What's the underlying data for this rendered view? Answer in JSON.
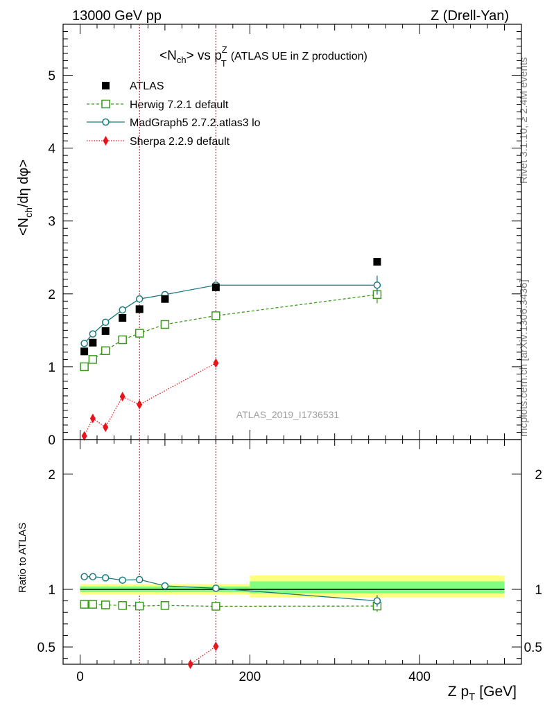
{
  "header": {
    "left": "13000 GeV pp",
    "right": "Z (Drell-Yan)"
  },
  "side_labels": {
    "rivet": "Rivet 3.1.10, ≥ 2.4M events",
    "mcplots": "mcplots.cern.ch [arXiv:1306.3436]"
  },
  "colors": {
    "atlas": "#000000",
    "herwig": "#3a9a1a",
    "madgraph": "#1a7a80",
    "sherpa": "#e8141c",
    "band_inner": "#80ff80",
    "band_outer": "#ffff80"
  },
  "chart_data": [
    {
      "type": "scatter",
      "title_parts": {
        "a": "<N",
        "b": "ch",
        "c": "> vs p",
        "d": "Z",
        "e": "T",
        "f": "(ATLAS UE in Z production)"
      },
      "ylabel_parts": {
        "a": "<N",
        "b": "ch",
        "c": "/dη dφ>"
      },
      "watermark": "ATLAS_2019_I1736531",
      "xlim": [
        -20,
        520
      ],
      "ylim": [
        0,
        5.7
      ],
      "yticks": [
        "0",
        "1",
        "2",
        "3",
        "4",
        "5"
      ],
      "legend_position": "top-left",
      "series": [
        {
          "name": "ATLAS",
          "marker": "filled-square",
          "x": [
            5,
            15,
            30,
            50,
            70,
            100,
            160,
            350
          ],
          "y": [
            1.21,
            1.33,
            1.49,
            1.67,
            1.79,
            1.93,
            2.09,
            2.44
          ]
        },
        {
          "name": "Herwig 7.2.1 default",
          "marker": "open-square",
          "line": "dashed",
          "x": [
            5,
            15,
            30,
            50,
            70,
            100,
            160,
            350
          ],
          "y": [
            1.0,
            1.1,
            1.22,
            1.37,
            1.46,
            1.58,
            1.7,
            1.99
          ],
          "yerr_last": 0.12
        },
        {
          "name": "MadGraph5 2.7.2.atlas3 lo",
          "marker": "open-circle",
          "line": "solid",
          "x": [
            5,
            15,
            30,
            50,
            70,
            100,
            160,
            350
          ],
          "y": [
            1.32,
            1.45,
            1.61,
            1.78,
            1.93,
            1.99,
            2.12,
            2.12
          ],
          "yerr_last": 0.13
        },
        {
          "name": "Sherpa 2.2.9 default",
          "marker": "filled-diamond",
          "line": "dotted",
          "x": [
            5,
            15,
            30,
            50,
            70,
            160
          ],
          "y": [
            0.05,
            0.29,
            0.17,
            0.59,
            0.48,
            1.05
          ]
        }
      ],
      "vertical_lines_x": [
        70,
        160
      ]
    },
    {
      "type": "line",
      "ylabel": "Ratio to ATLAS",
      "xlabel_parts": {
        "a": "Z p",
        "b": "T",
        "c": "[GeV]"
      },
      "xlim": [
        -20,
        520
      ],
      "ylim": [
        0.35,
        2.3
      ],
      "xticks": [
        "0",
        "200",
        "400"
      ],
      "yticks": [
        "0.5",
        "1",
        "2"
      ],
      "bands": [
        {
          "x": [
            0,
            200
          ],
          "inner": [
            0.975,
            1.025
          ],
          "outer": [
            0.955,
            1.045
          ]
        },
        {
          "x": [
            200,
            500
          ],
          "inner": [
            0.965,
            1.07
          ],
          "outer": [
            0.93,
            1.12
          ]
        }
      ],
      "series": [
        {
          "name": "Herwig 7.2.1 default",
          "x": [
            5,
            15,
            30,
            50,
            70,
            100,
            160,
            350
          ],
          "y": [
            0.87,
            0.87,
            0.865,
            0.86,
            0.855,
            0.86,
            0.853,
            0.855
          ],
          "yerr_last": 0.05
        },
        {
          "name": "MadGraph5 2.7.2.atlas3 lo",
          "x": [
            5,
            15,
            30,
            50,
            70,
            100,
            160,
            350
          ],
          "y": [
            1.11,
            1.11,
            1.1,
            1.08,
            1.085,
            1.03,
            1.01,
            0.9
          ],
          "yerr_last": 0.05
        },
        {
          "name": "Sherpa 2.2.9 default",
          "x": [
            130,
            160
          ],
          "y": [
            0.35,
            0.505
          ]
        }
      ]
    }
  ]
}
